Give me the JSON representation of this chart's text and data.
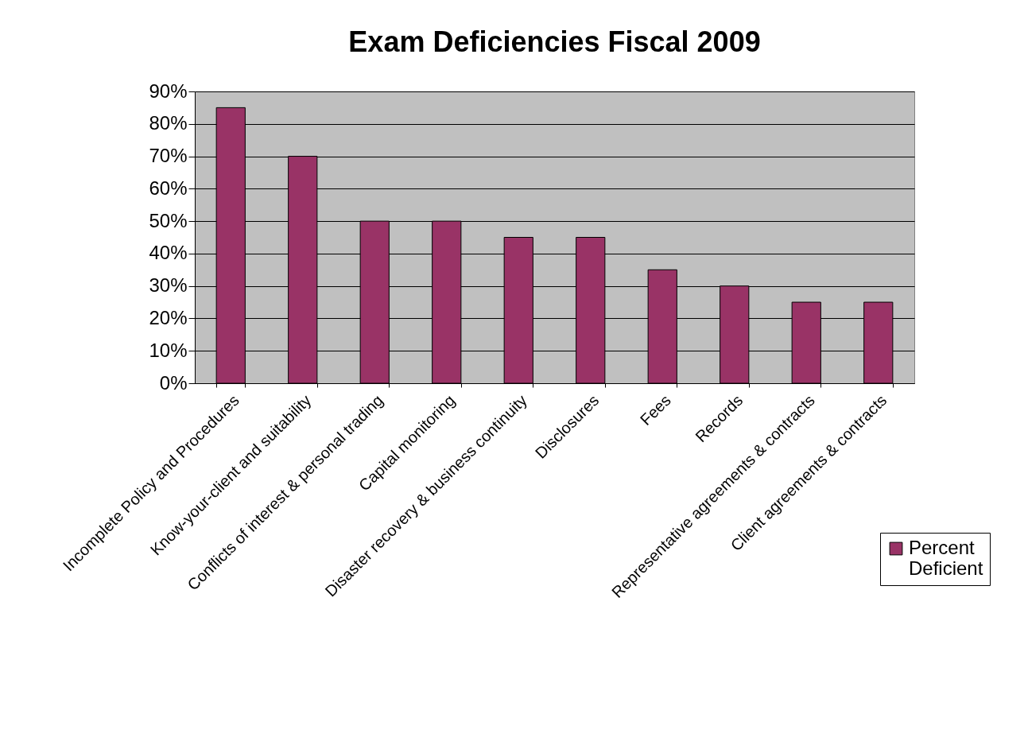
{
  "chart_data": {
    "type": "bar",
    "title": "Exam Deficiencies Fiscal 2009",
    "categories": [
      "Incomplete Policy and Procedures",
      "Know-your-client and suitability",
      "Conflicts of interest & personal trading",
      "Capital monitoring",
      "Disaster recovery & business continuity",
      "Disclosures",
      "Fees",
      "Records",
      "Representative agreements & contracts",
      "Client agreements & contracts"
    ],
    "series": [
      {
        "name": "Percent Deficient",
        "color": "#993366",
        "values": [
          85,
          70,
          50,
          50,
          45,
          45,
          35,
          30,
          25,
          25
        ]
      }
    ],
    "ylim": [
      0,
      90
    ],
    "yticks": [
      {
        "value": 0,
        "label": "0%"
      },
      {
        "value": 10,
        "label": "10%"
      },
      {
        "value": 20,
        "label": "20%"
      },
      {
        "value": 30,
        "label": "30%"
      },
      {
        "value": 40,
        "label": "40%"
      },
      {
        "value": 50,
        "label": "50%"
      },
      {
        "value": 60,
        "label": "60%"
      },
      {
        "value": 70,
        "label": "70%"
      },
      {
        "value": 80,
        "label": "80%"
      },
      {
        "value": 90,
        "label": "90%"
      }
    ],
    "grid": "y",
    "legend": "bottom right"
  }
}
